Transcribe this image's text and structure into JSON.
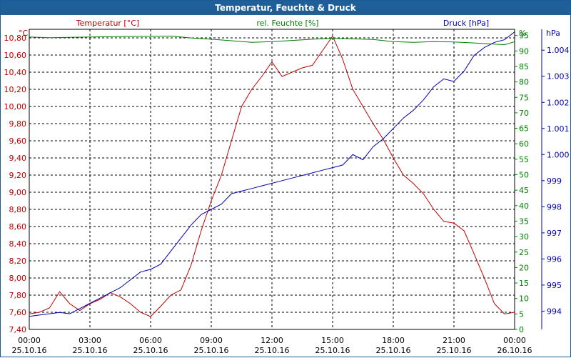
{
  "window": {
    "title": "Temperatur, Feuchte & Druck"
  },
  "chart_data": {
    "type": "line",
    "title": "Temperatur, Feuchte & Druck",
    "colors": {
      "temperature": "#c00000",
      "humidity": "#008000",
      "pressure": "#0000b0",
      "grid": "#000000"
    },
    "grid": true,
    "x_labels": [
      {
        "time": "00:00",
        "date": "25.10.16"
      },
      {
        "time": "03:00",
        "date": "25.10.16"
      },
      {
        "time": "06:00",
        "date": "25.10.16"
      },
      {
        "time": "09:00",
        "date": "25.10.16"
      },
      {
        "time": "12:00",
        "date": "25.10.16"
      },
      {
        "time": "15:00",
        "date": "25.10.16"
      },
      {
        "time": "18:00",
        "date": "25.10.16"
      },
      {
        "time": "21:00",
        "date": "25.10.16"
      },
      {
        "time": "00:00",
        "date": "26.10.16"
      }
    ],
    "axes": {
      "temperature": {
        "label": "Temperatur [°C]",
        "unit": "°C",
        "ylim": [
          7.4,
          10.9
        ],
        "ticks": [
          "7,40",
          "7,60",
          "7,80",
          "8,00",
          "8,20",
          "8,40",
          "8,60",
          "8,80",
          "9,00",
          "9,20",
          "9,40",
          "9,60",
          "9,80",
          "10,00",
          "10,20",
          "10,40",
          "10,60",
          "10,80"
        ]
      },
      "humidity": {
        "label": "rel. Feuchte [%]",
        "unit": "%",
        "ylim": [
          0,
          97
        ],
        "ticks": [
          "0",
          "5",
          "10",
          "15",
          "20",
          "25",
          "30",
          "35",
          "40",
          "45",
          "50",
          "55",
          "60",
          "65",
          "70",
          "75",
          "80",
          "85",
          "90",
          "95"
        ]
      },
      "pressure": {
        "label": "Druck [hPa]",
        "unit": "hPa",
        "ylim": [
          993.3,
          1004.8
        ],
        "ticks": [
          "994",
          "995",
          "996",
          "997",
          "998",
          "999",
          "1.000",
          "1.001",
          "1.002",
          "1.003",
          "1.004"
        ]
      }
    },
    "series": [
      {
        "name": "Temperatur [°C]",
        "axis": "temperature",
        "x": [
          0,
          0.5,
          1,
          1.5,
          2,
          2.5,
          3,
          3.5,
          4,
          4.5,
          5,
          5.5,
          6,
          6.5,
          7,
          7.5,
          8,
          8.5,
          9,
          9.5,
          10,
          10.5,
          11,
          11.5,
          12,
          12.5,
          13,
          13.5,
          14,
          14.5,
          15,
          15.5,
          16,
          16.5,
          17,
          17.5,
          18,
          18.5,
          19,
          19.5,
          20,
          20.5,
          21,
          21.5,
          22,
          22.5,
          23,
          23.5,
          24
        ],
        "values": [
          7.58,
          7.6,
          7.65,
          7.84,
          7.7,
          7.62,
          7.7,
          7.75,
          7.83,
          7.78,
          7.7,
          7.6,
          7.55,
          7.67,
          7.8,
          7.86,
          8.15,
          8.55,
          8.9,
          9.2,
          9.6,
          10.0,
          10.2,
          10.35,
          10.52,
          10.35,
          10.4,
          10.45,
          10.48,
          10.65,
          10.82,
          10.55,
          10.2,
          10.0,
          9.8,
          9.62,
          9.4,
          9.2,
          9.1,
          8.98,
          8.8,
          8.66,
          8.64,
          8.55,
          8.28,
          8.0,
          7.7,
          7.58,
          7.6
        ]
      },
      {
        "name": "rel. Feuchte [%]",
        "axis": "humidity",
        "x": [
          0,
          1,
          2,
          3,
          4,
          5,
          6,
          7,
          8,
          9,
          10,
          11,
          12,
          13,
          14,
          15,
          16,
          17,
          18,
          19,
          20,
          21,
          22,
          23,
          23.5,
          24
        ],
        "values": [
          94.5,
          94.3,
          94.4,
          94.5,
          94.6,
          94.7,
          94.7,
          94.8,
          94.2,
          93.8,
          93.3,
          92.8,
          93.0,
          93.4,
          93.8,
          94.1,
          93.9,
          93.7,
          93.0,
          92.8,
          93.0,
          92.9,
          92.6,
          92.2,
          92.0,
          93.0
        ]
      },
      {
        "name": "Druck [hPa]",
        "axis": "pressure",
        "x": [
          0,
          0.5,
          1,
          1.5,
          2,
          2.5,
          3,
          3.5,
          4,
          4.5,
          5,
          5.5,
          6,
          6.5,
          7,
          7.5,
          8,
          8.5,
          9,
          9.5,
          10,
          10.5,
          11,
          11.5,
          12,
          12.5,
          13,
          13.5,
          14,
          14.5,
          15,
          15.5,
          16,
          16.5,
          17,
          17.5,
          18,
          18.5,
          19,
          19.5,
          20,
          20.5,
          21,
          21.5,
          22,
          22.5,
          23,
          23.5,
          24
        ],
        "values": [
          993.8,
          993.85,
          993.9,
          993.95,
          993.9,
          994.1,
          994.3,
          994.5,
          994.7,
          994.9,
          995.2,
          995.5,
          995.6,
          995.8,
          996.3,
          996.8,
          997.3,
          997.7,
          997.9,
          998.1,
          998.5,
          998.6,
          998.7,
          998.8,
          998.9,
          999.0,
          999.1,
          999.2,
          999.3,
          999.4,
          999.5,
          999.6,
          1000.0,
          999.8,
          1000.3,
          1000.6,
          1001.0,
          1001.4,
          1001.7,
          1002.1,
          1002.6,
          1002.9,
          1002.8,
          1003.2,
          1003.8,
          1004.1,
          1004.3,
          1004.4,
          1004.7
        ]
      }
    ]
  }
}
